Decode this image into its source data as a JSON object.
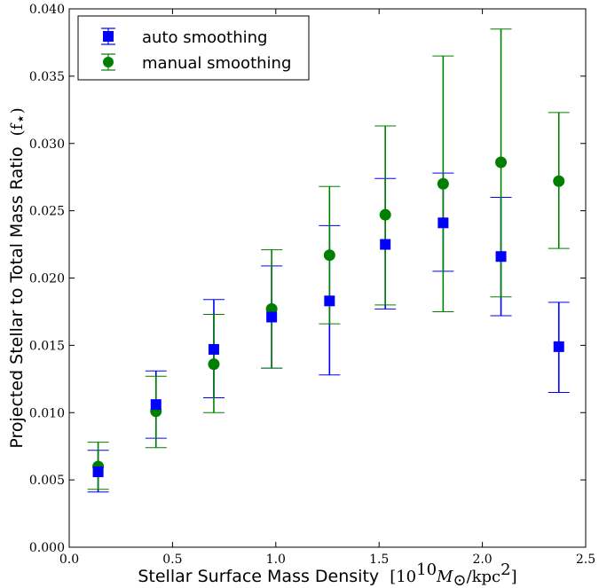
{
  "chart_data": {
    "type": "scatter",
    "xlabel": "Stellar Surface Mass Density",
    "xlabel_unit": "[10",
    "xlabel_unit_sup": "10",
    "xlabel_unit_rest": "M",
    "xlabel_unit_sub": "⊙",
    "xlabel_unit_tail": "/kpc",
    "xlabel_unit_sup2": "2",
    "xlabel_unit_close": "]",
    "ylabel": "Projected Stellar to Total Mass Ratio",
    "ylabel_math": "(f",
    "ylabel_math_sub": "⋆",
    "ylabel_math_close": ")",
    "xlim": [
      0.0,
      2.5
    ],
    "ylim": [
      0.0,
      0.04
    ],
    "xticks": [
      "0.0",
      "0.5",
      "1.0",
      "1.5",
      "2.0",
      "2.5"
    ],
    "yticks": [
      "0.000",
      "0.005",
      "0.010",
      "0.015",
      "0.020",
      "0.025",
      "0.030",
      "0.035",
      "0.040"
    ],
    "legend_position": "top-left",
    "grid": false,
    "series": [
      {
        "name": "auto smoothing",
        "color": "#0000ff",
        "marker": "square",
        "x": [
          0.14,
          0.42,
          0.7,
          0.98,
          1.26,
          1.53,
          1.81,
          2.09,
          2.37
        ],
        "y": [
          0.0056,
          0.0106,
          0.0147,
          0.0171,
          0.0183,
          0.0225,
          0.0241,
          0.0216,
          0.0149
        ],
        "err_low": [
          0.0041,
          0.0081,
          0.0111,
          0.0133,
          0.0128,
          0.0177,
          0.0205,
          0.0172,
          0.0115
        ],
        "err_high": [
          0.0072,
          0.0131,
          0.0184,
          0.0209,
          0.0239,
          0.0274,
          0.0278,
          0.026,
          0.0182
        ]
      },
      {
        "name": "manual smoothing",
        "color": "#007f00",
        "marker": "circle",
        "x": [
          0.14,
          0.42,
          0.7,
          0.98,
          1.26,
          1.53,
          1.81,
          2.09,
          2.37
        ],
        "y": [
          0.006,
          0.0101,
          0.0136,
          0.0177,
          0.0217,
          0.0247,
          0.027,
          0.0286,
          0.0272
        ],
        "err_low": [
          0.0043,
          0.0074,
          0.01,
          0.0133,
          0.0166,
          0.018,
          0.0175,
          0.0186,
          0.0222
        ],
        "err_high": [
          0.0078,
          0.0127,
          0.0173,
          0.0221,
          0.0268,
          0.0313,
          0.0365,
          0.0385,
          0.0323
        ]
      }
    ]
  }
}
